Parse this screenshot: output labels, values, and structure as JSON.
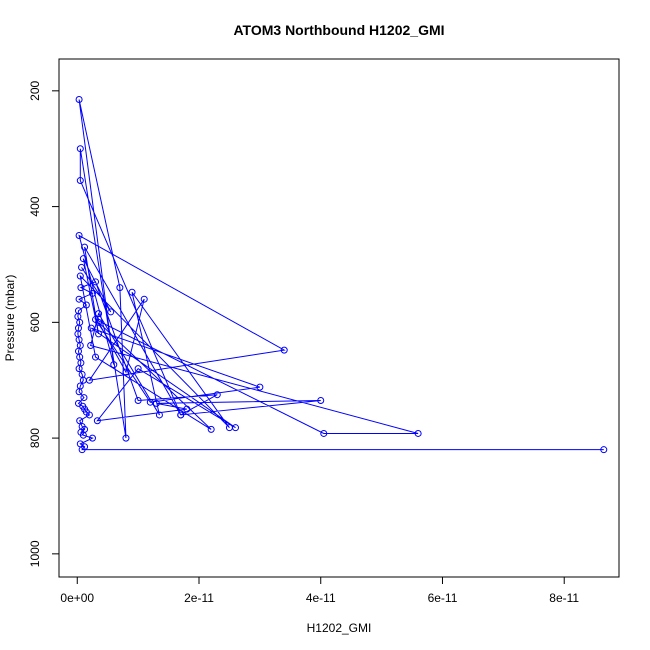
{
  "chart_data": {
    "type": "line",
    "title": "ATOM3 Northbound H1202_GMI",
    "xlabel": "H1202_GMI",
    "ylabel": "Pressure (mbar)",
    "xlim": [
      -3e-12,
      8.9e-11
    ],
    "ylim": [
      1040,
      145
    ],
    "y_reversed": true,
    "x_ticks": [
      {
        "value": 0,
        "label": "0e+00"
      },
      {
        "value": 2e-11,
        "label": "2e-11"
      },
      {
        "value": 4e-11,
        "label": "4e-11"
      },
      {
        "value": 6e-11,
        "label": "6e-11"
      },
      {
        "value": 8e-11,
        "label": "8e-11"
      }
    ],
    "y_ticks": [
      {
        "value": 200,
        "label": "200"
      },
      {
        "value": 400,
        "label": "400"
      },
      {
        "value": 600,
        "label": "600"
      },
      {
        "value": 800,
        "label": "800"
      },
      {
        "value": 1000,
        "label": "1000"
      }
    ],
    "grid": false,
    "color": "#0000ff",
    "series": [
      {
        "x": [
          8.65e-11,
          8e-13,
          1.2e-12,
          5e-13,
          2.5e-12,
          1e-12,
          6e-13,
          1.2e-12,
          8e-13,
          4e-13,
          2e-12,
          1.5e-12,
          1.2e-12,
          9e-13,
          2e-13,
          1.1e-12,
          3e-13,
          5e-13,
          1e-12,
          8e-13,
          3e-13,
          6e-13,
          4e-13,
          2e-13,
          5e-13,
          3e-13,
          1e-13,
          2e-13,
          4e-13,
          1e-13,
          2e-13,
          1.5e-12,
          3e-13,
          2.5e-12,
          6e-13,
          3e-12,
          1e-11,
          2.3e-11,
          1.7e-11,
          4e-11,
          1.3e-11,
          1.8e-11,
          3.3e-12,
          1e-11,
          2.6e-11,
          2.3e-12,
          3e-11,
          1.2e-11,
          3e-12,
          4.05e-11,
          5.6e-11,
          2.2e-12,
          3.5e-12,
          1.35e-11,
          9e-12,
          2.5e-11,
          5e-13,
          3e-12,
          2.2e-11,
          3.5e-12,
          8e-12,
          1.1e-11,
          2e-12,
          3.4e-11,
          3e-13,
          6e-12,
          3e-13,
          7e-12,
          8e-12,
          5e-13,
          5e-13,
          1.7e-11,
          1.2e-12,
          3.5e-12,
          1e-12,
          5.5e-12,
          7e-13
        ],
        "y": [
          820,
          820,
          815,
          810,
          800,
          795,
          790,
          785,
          780,
          770,
          760,
          755,
          750,
          745,
          740,
          730,
          720,
          710,
          700,
          690,
          680,
          670,
          660,
          650,
          640,
          630,
          620,
          610,
          600,
          590,
          580,
          570,
          560,
          550,
          540,
          530,
          735,
          725,
          760,
          735,
          740,
          750,
          770,
          680,
          782,
          610,
          712,
          738,
          595,
          792,
          792,
          640,
          585,
          760,
          548,
          782,
          520,
          660,
          785,
          600,
          686,
          560,
          700,
          648,
          450,
          673,
          215,
          540,
          800,
          300,
          355,
          760,
          470,
          620,
          490,
          582,
          505
        ]
      }
    ]
  }
}
